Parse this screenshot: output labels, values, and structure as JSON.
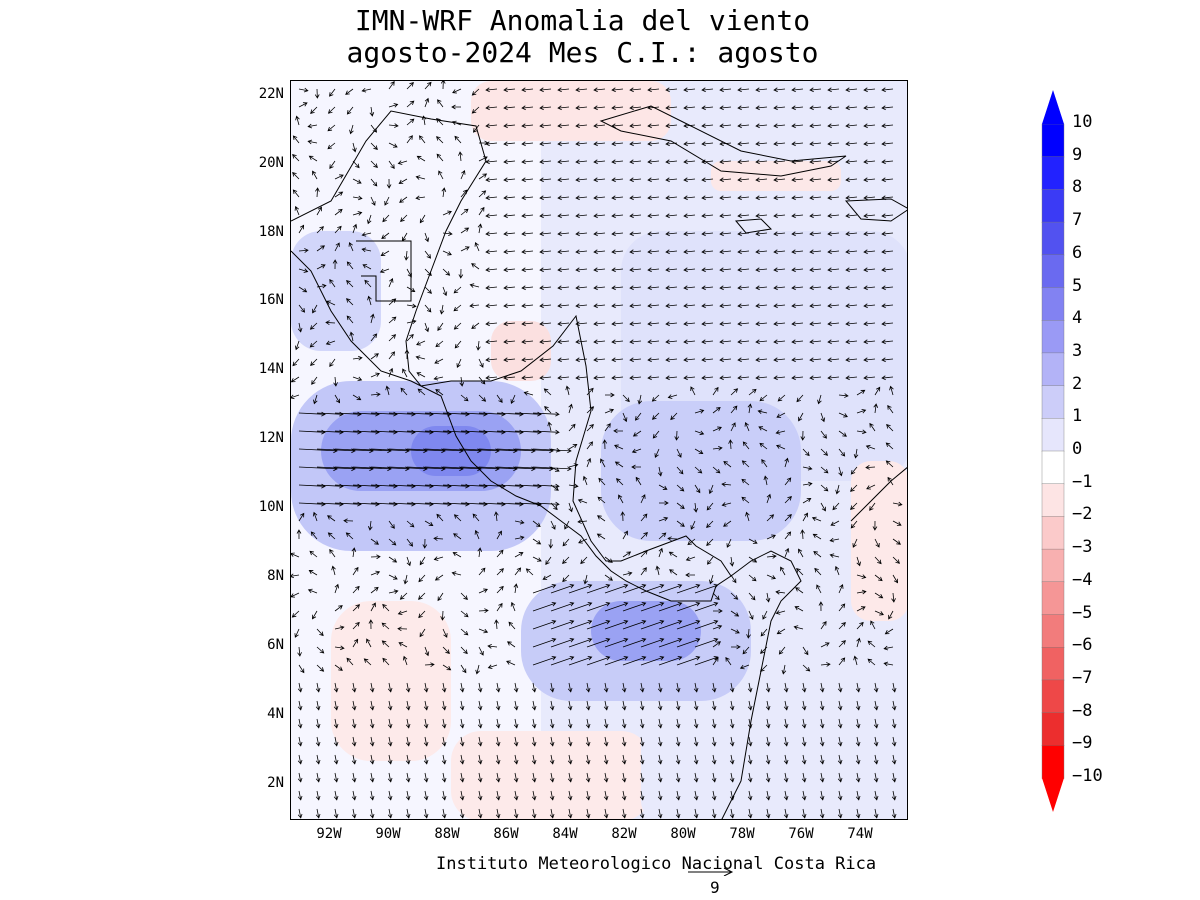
{
  "title": {
    "line1": "IMN-WRF Anomalia del viento",
    "line2": " agosto-2024 Mes C.I.: agosto"
  },
  "map": {
    "lat_labels": [
      "22N",
      "20N",
      "18N",
      "16N",
      "14N",
      "12N",
      "10N",
      "8N",
      "6N",
      "4N",
      "2N"
    ],
    "lon_labels": [
      "92W",
      "90W",
      "88W",
      "86W",
      "84W",
      "82W",
      "80W",
      "78W",
      "76W",
      "74W"
    ],
    "credit": "Instituto Meteorologico Nacional Costa Rica",
    "reference_vector_label": "9"
  },
  "colorbar": {
    "labels": [
      "10",
      "9",
      "8",
      "7",
      "6",
      "5",
      "4",
      "3",
      "2",
      "1",
      "0",
      "−1",
      "−2",
      "−3",
      "−4",
      "−5",
      "−6",
      "−7",
      "−8",
      "−9",
      "−10"
    ],
    "colors": [
      "#0000ff",
      "#2222ff",
      "#3b3bf5",
      "#5252f0",
      "#6a6af0",
      "#8282f2",
      "#9a9af5",
      "#b3b3f7",
      "#cccdf9",
      "#e6e6fc",
      "#ffffff",
      "#fde4e4",
      "#fbcaca",
      "#f8b0b0",
      "#f59696",
      "#f27c7c",
      "#f06262",
      "#ee4848",
      "#ec2e2e",
      "#ff0000"
    ],
    "top_arrow_color": "#0000ff",
    "bottom_arrow_color": "#ff0000"
  }
}
